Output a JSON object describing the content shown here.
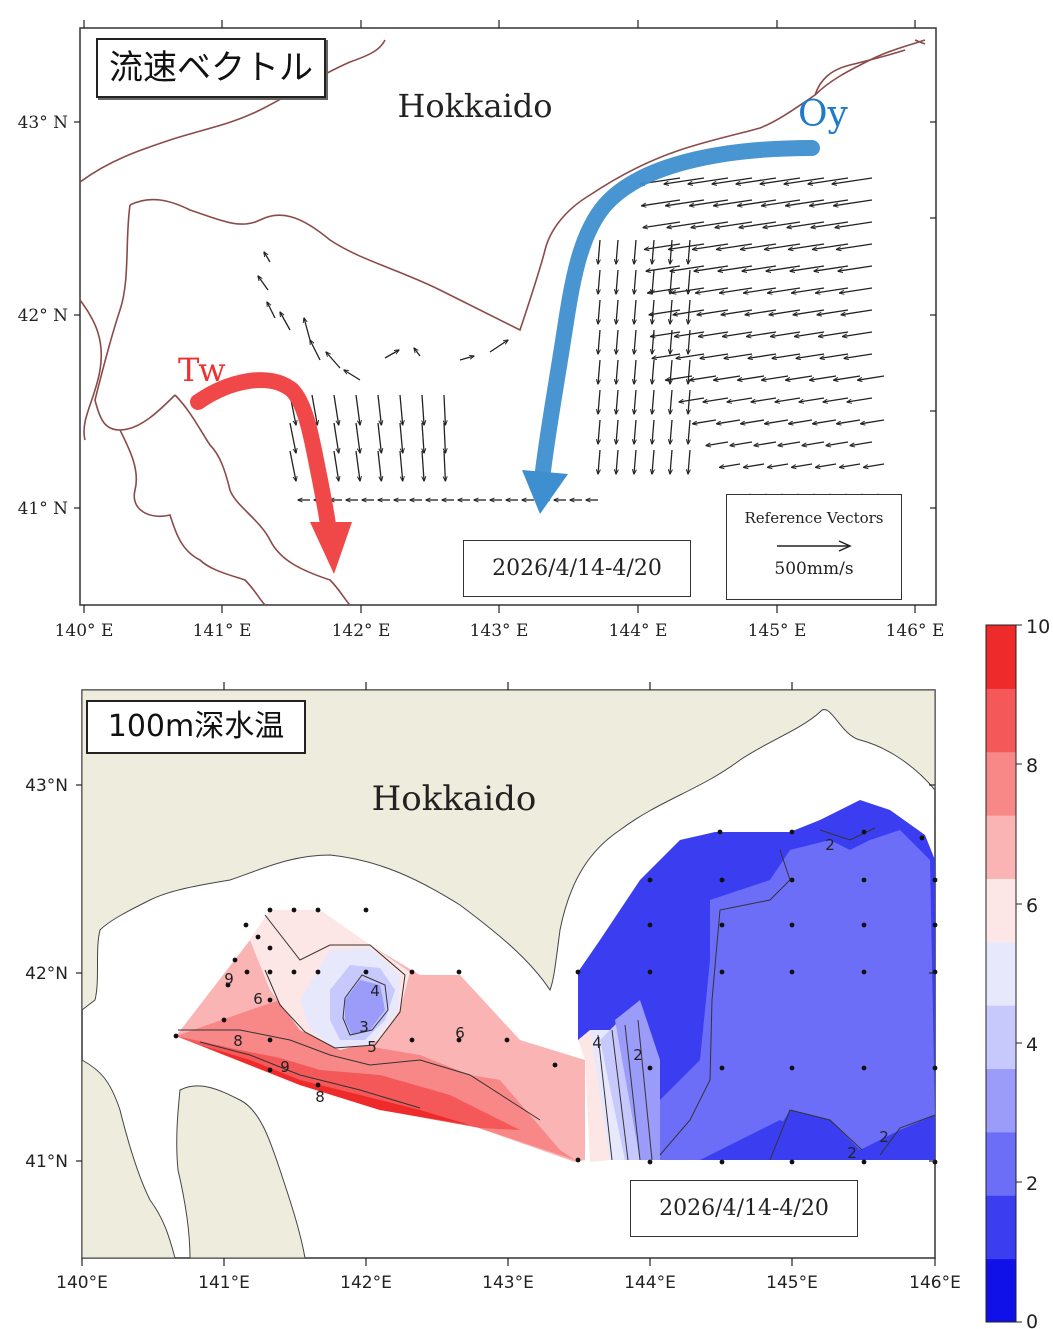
{
  "panel1": {
    "title": "流速ベクトル",
    "region_label": "Hokkaido",
    "date": "2026/4/14-4/20",
    "lat_ticks": [
      "43° N",
      "42° N",
      "41° N"
    ],
    "lon_ticks": [
      "140° E",
      "141° E",
      "142° E",
      "143° E",
      "144° E",
      "145° E",
      "146° E"
    ],
    "current_oy": {
      "label": "Oy",
      "color": "#3e8fd0"
    },
    "current_tw": {
      "label": "Tw",
      "color": "#f04848"
    },
    "reference": {
      "title": "Reference Vectors",
      "label": "500mm/s"
    }
  },
  "panel2": {
    "title": "100m深水温",
    "region_label": "Hokkaido",
    "date": "2026/4/14-4/20",
    "lat_ticks": [
      "43°N",
      "42°N",
      "41°N"
    ],
    "lon_ticks": [
      "140°E",
      "141°E",
      "142°E",
      "143°E",
      "144°E",
      "145°E",
      "146°E"
    ],
    "contour_labels": [
      "2",
      "2",
      "2",
      "2",
      "4",
      "4",
      "3",
      "5",
      "6",
      "8",
      "9",
      "8",
      "9",
      "6"
    ]
  },
  "colorbar": {
    "ticks": [
      "10",
      "8",
      "6",
      "4",
      "2",
      "0"
    ],
    "range": [
      0,
      10
    ],
    "colors": [
      "#1010e8",
      "#3a3ef0",
      "#6d6ef8",
      "#9b9cfa",
      "#c7c8fb",
      "#e8e8fc",
      "#fde6e6",
      "#fbb4b4",
      "#f88888",
      "#f45858",
      "#ef2a2a"
    ]
  },
  "colors": {
    "land": "#eeecdc",
    "coast_line": "#8b4a4a"
  }
}
